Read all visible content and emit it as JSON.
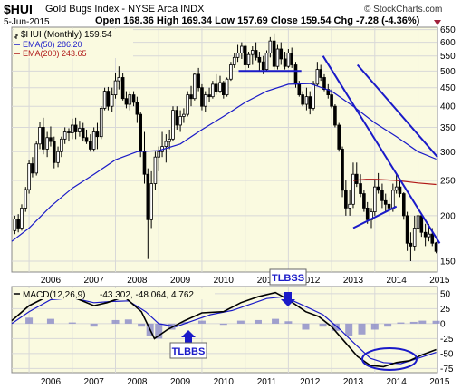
{
  "header": {
    "symbol": "$HUI",
    "name": "Gold Bugs Index - NYSE Arca INDX",
    "watermark": "© StockCharts.com",
    "date": "5-Jun-2015",
    "quote": "Open 168.36 High 169.34 Low 157.69 Close 159.54 Chg -7.28 (-4.36%)"
  },
  "colors": {
    "panel_bg": "#fafae0",
    "grid": "#d8d8d8",
    "candle": "#000000",
    "ema50": "#1a1ac8",
    "ema200": "#b01818",
    "trendline": "#1a1ac8",
    "annotation": "#1a1ac8",
    "hist": "#8a8ac8"
  },
  "legend": {
    "price": "$HUI (Monthly) 159.54",
    "ema50": "EMA(50) 286.20",
    "ema200": "EMA(200) 243.65"
  },
  "macd": {
    "label": "MACD(12,26,9)",
    "values": "-43.302, -48.064, 4.762"
  },
  "annotations": {
    "tlbss_top": "TLBSS",
    "tlbss_bottom": "TLBBS"
  },
  "chart_data": [
    {
      "type": "candlestick",
      "title": "$HUI (Monthly)",
      "x_tick_labels": [
        "2006",
        "2007",
        "2008",
        "2009",
        "2010",
        "2011",
        "2012",
        "2013",
        "2014",
        "2015"
      ],
      "y_tick_labels": [
        "650",
        "600",
        "550",
        "500",
        "450",
        "400",
        "350",
        "300",
        "250",
        "200",
        "150"
      ],
      "y_scale": "log",
      "ylim": [
        140,
        660
      ],
      "grid": true,
      "legend_position": "top-left",
      "x_start": 2005.6,
      "x_end": 2015.45,
      "candles": [
        [
          2005.58,
          175,
          185,
          170,
          182
        ],
        [
          2005.67,
          182,
          200,
          178,
          196
        ],
        [
          2005.75,
          196,
          202,
          180,
          185
        ],
        [
          2005.83,
          185,
          215,
          182,
          210
        ],
        [
          2005.92,
          210,
          240,
          205,
          236
        ],
        [
          2006.0,
          236,
          285,
          230,
          278
        ],
        [
          2006.08,
          278,
          290,
          255,
          262
        ],
        [
          2006.17,
          262,
          320,
          258,
          315
        ],
        [
          2006.25,
          315,
          362,
          305,
          350
        ],
        [
          2006.33,
          350,
          372,
          295,
          305
        ],
        [
          2006.42,
          305,
          340,
          290,
          328
        ],
        [
          2006.5,
          328,
          352,
          310,
          320
        ],
        [
          2006.58,
          320,
          330,
          270,
          280
        ],
        [
          2006.67,
          280,
          310,
          272,
          300
        ],
        [
          2006.75,
          300,
          330,
          290,
          325
        ],
        [
          2006.83,
          325,
          350,
          315,
          340
        ],
        [
          2006.92,
          340,
          348,
          320,
          338
        ],
        [
          2007.0,
          338,
          370,
          325,
          355
        ],
        [
          2007.08,
          355,
          372,
          325,
          340
        ],
        [
          2007.17,
          340,
          365,
          330,
          348
        ],
        [
          2007.25,
          348,
          360,
          320,
          328
        ],
        [
          2007.33,
          328,
          345,
          315,
          320
        ],
        [
          2007.42,
          320,
          335,
          300,
          305
        ],
        [
          2007.5,
          305,
          350,
          300,
          340
        ],
        [
          2007.58,
          340,
          360,
          305,
          330
        ],
        [
          2007.67,
          330,
          400,
          325,
          395
        ],
        [
          2007.75,
          395,
          450,
          390,
          440
        ],
        [
          2007.83,
          440,
          452,
          390,
          400
        ],
        [
          2007.92,
          400,
          450,
          385,
          430
        ],
        [
          2008.0,
          430,
          495,
          420,
          470
        ],
        [
          2008.08,
          470,
          515,
          445,
          480
        ],
        [
          2008.17,
          480,
          495,
          415,
          420
        ],
        [
          2008.25,
          420,
          440,
          395,
          405
        ],
        [
          2008.33,
          405,
          440,
          390,
          430
        ],
        [
          2008.42,
          430,
          440,
          400,
          410
        ],
        [
          2008.5,
          410,
          425,
          360,
          380
        ],
        [
          2008.58,
          380,
          385,
          290,
          300
        ],
        [
          2008.67,
          300,
          340,
          245,
          260
        ],
        [
          2008.75,
          260,
          270,
          152,
          195
        ],
        [
          2008.83,
          195,
          265,
          185,
          245
        ],
        [
          2008.92,
          245,
          300,
          235,
          290
        ],
        [
          2009.0,
          290,
          310,
          265,
          300
        ],
        [
          2009.08,
          300,
          340,
          290,
          310
        ],
        [
          2009.17,
          310,
          335,
          280,
          320
        ],
        [
          2009.25,
          320,
          345,
          305,
          325
        ],
        [
          2009.33,
          325,
          400,
          320,
          390
        ],
        [
          2009.42,
          390,
          400,
          345,
          355
        ],
        [
          2009.5,
          355,
          390,
          340,
          375
        ],
        [
          2009.58,
          375,
          395,
          360,
          380
        ],
        [
          2009.67,
          380,
          440,
          375,
          430
        ],
        [
          2009.75,
          430,
          455,
          400,
          420
        ],
        [
          2009.83,
          420,
          495,
          415,
          490
        ],
        [
          2009.92,
          490,
          510,
          440,
          450
        ],
        [
          2010.0,
          450,
          460,
          390,
          400
        ],
        [
          2010.08,
          400,
          440,
          385,
          430
        ],
        [
          2010.17,
          430,
          450,
          410,
          425
        ],
        [
          2010.25,
          425,
          470,
          420,
          460
        ],
        [
          2010.33,
          460,
          490,
          430,
          440
        ],
        [
          2010.42,
          440,
          485,
          435,
          465
        ],
        [
          2010.5,
          465,
          470,
          420,
          430
        ],
        [
          2010.58,
          430,
          480,
          425,
          475
        ],
        [
          2010.67,
          475,
          530,
          470,
          520
        ],
        [
          2010.75,
          520,
          560,
          510,
          545
        ],
        [
          2010.83,
          545,
          590,
          530,
          560
        ],
        [
          2010.92,
          560,
          600,
          540,
          585
        ],
        [
          2011.0,
          585,
          590,
          500,
          520
        ],
        [
          2011.08,
          520,
          565,
          510,
          555
        ],
        [
          2011.17,
          555,
          585,
          520,
          570
        ],
        [
          2011.25,
          570,
          600,
          535,
          545
        ],
        [
          2011.33,
          545,
          565,
          500,
          530
        ],
        [
          2011.42,
          530,
          550,
          490,
          505
        ],
        [
          2011.5,
          505,
          570,
          500,
          560
        ],
        [
          2011.58,
          560,
          620,
          545,
          605
        ],
        [
          2011.67,
          605,
          635,
          505,
          515
        ],
        [
          2011.75,
          515,
          590,
          505,
          575
        ],
        [
          2011.83,
          575,
          600,
          520,
          540
        ],
        [
          2011.92,
          540,
          565,
          505,
          515
        ],
        [
          2012.0,
          515,
          575,
          510,
          560
        ],
        [
          2012.08,
          560,
          580,
          510,
          520
        ],
        [
          2012.17,
          520,
          530,
          450,
          460
        ],
        [
          2012.25,
          460,
          470,
          425,
          430
        ],
        [
          2012.33,
          430,
          440,
          400,
          405
        ],
        [
          2012.42,
          405,
          450,
          390,
          425
        ],
        [
          2012.5,
          425,
          440,
          380,
          395
        ],
        [
          2012.58,
          395,
          470,
          390,
          460
        ],
        [
          2012.67,
          460,
          530,
          455,
          505
        ],
        [
          2012.75,
          505,
          520,
          470,
          480
        ],
        [
          2012.83,
          480,
          490,
          440,
          445
        ],
        [
          2012.92,
          445,
          460,
          420,
          430
        ],
        [
          2013.0,
          430,
          445,
          395,
          400
        ],
        [
          2013.08,
          400,
          405,
          350,
          355
        ],
        [
          2013.17,
          355,
          360,
          300,
          305
        ],
        [
          2013.25,
          305,
          310,
          225,
          235
        ],
        [
          2013.33,
          235,
          250,
          200,
          210
        ],
        [
          2013.42,
          210,
          235,
          200,
          215
        ],
        [
          2013.5,
          215,
          280,
          210,
          260
        ],
        [
          2013.58,
          260,
          280,
          240,
          245
        ],
        [
          2013.67,
          245,
          260,
          225,
          230
        ],
        [
          2013.75,
          230,
          235,
          205,
          210
        ],
        [
          2013.83,
          210,
          218,
          190,
          195
        ],
        [
          2013.92,
          195,
          210,
          185,
          205
        ],
        [
          2014.0,
          205,
          250,
          200,
          240
        ],
        [
          2014.08,
          240,
          262,
          230,
          235
        ],
        [
          2014.17,
          235,
          245,
          210,
          220
        ],
        [
          2014.25,
          220,
          230,
          205,
          215
        ],
        [
          2014.33,
          215,
          225,
          200,
          210
        ],
        [
          2014.42,
          210,
          245,
          205,
          235
        ],
        [
          2014.5,
          235,
          260,
          230,
          240
        ],
        [
          2014.58,
          240,
          250,
          225,
          230
        ],
        [
          2014.67,
          230,
          232,
          195,
          200
        ],
        [
          2014.75,
          200,
          205,
          160,
          168
        ],
        [
          2014.83,
          168,
          180,
          150,
          165
        ],
        [
          2014.92,
          165,
          200,
          160,
          185
        ],
        [
          2015.0,
          185,
          210,
          180,
          200
        ],
        [
          2015.08,
          200,
          202,
          175,
          180
        ],
        [
          2015.17,
          180,
          190,
          165,
          175
        ],
        [
          2015.25,
          175,
          190,
          170,
          178
        ],
        [
          2015.33,
          178,
          185,
          165,
          168
        ],
        [
          2015.42,
          168.36,
          169.34,
          157.69,
          159.54
        ]
      ],
      "ema50": [
        [
          2005.6,
          170
        ],
        [
          2006.0,
          185
        ],
        [
          2006.5,
          212
        ],
        [
          2007.0,
          238
        ],
        [
          2007.5,
          260
        ],
        [
          2008.0,
          285
        ],
        [
          2008.5,
          300
        ],
        [
          2009.0,
          302
        ],
        [
          2009.5,
          315
        ],
        [
          2010.0,
          345
        ],
        [
          2010.5,
          375
        ],
        [
          2011.0,
          410
        ],
        [
          2011.5,
          440
        ],
        [
          2012.0,
          460
        ],
        [
          2012.5,
          462
        ],
        [
          2013.0,
          440
        ],
        [
          2013.5,
          400
        ],
        [
          2014.0,
          360
        ],
        [
          2014.5,
          330
        ],
        [
          2015.0,
          300
        ],
        [
          2015.42,
          286.2
        ]
      ],
      "ema200": [
        [
          2013.5,
          250
        ],
        [
          2013.8,
          252
        ],
        [
          2014.0,
          252
        ],
        [
          2014.5,
          250
        ],
        [
          2015.0,
          246
        ],
        [
          2015.42,
          243.65
        ]
      ],
      "trendlines": [
        [
          [
            2010.85,
            500
          ],
          [
            2012.3,
            500
          ]
        ],
        [
          [
            2012.8,
            550
          ],
          [
            2015.5,
            168
          ]
        ],
        [
          [
            2013.6,
            520
          ],
          [
            2015.45,
            290
          ]
        ],
        [
          [
            2013.5,
            185
          ],
          [
            2014.5,
            212
          ]
        ]
      ]
    },
    {
      "type": "line",
      "title": "MACD(12,26,9)",
      "y_tick_labels": [
        "50",
        "25",
        "0",
        "-25",
        "-50",
        "-75"
      ],
      "ylim": [
        -82,
        62
      ],
      "grid": true,
      "macd": [
        [
          2005.6,
          5
        ],
        [
          2006.0,
          30
        ],
        [
          2006.5,
          48
        ],
        [
          2007.0,
          45
        ],
        [
          2007.5,
          30
        ],
        [
          2007.8,
          35
        ],
        [
          2008.2,
          45
        ],
        [
          2008.6,
          20
        ],
        [
          2008.9,
          -25
        ],
        [
          2009.2,
          -10
        ],
        [
          2009.6,
          5
        ],
        [
          2010.0,
          18
        ],
        [
          2010.5,
          20
        ],
        [
          2010.9,
          35
        ],
        [
          2011.3,
          45
        ],
        [
          2011.7,
          52
        ],
        [
          2012.0,
          40
        ],
        [
          2012.4,
          20
        ],
        [
          2012.7,
          12
        ],
        [
          2013.0,
          -5
        ],
        [
          2013.3,
          -30
        ],
        [
          2013.6,
          -55
        ],
        [
          2013.9,
          -70
        ],
        [
          2014.2,
          -72
        ],
        [
          2014.5,
          -65
        ],
        [
          2014.8,
          -62
        ],
        [
          2015.1,
          -52
        ],
        [
          2015.42,
          -43.3
        ]
      ],
      "signal": [
        [
          2005.6,
          0
        ],
        [
          2006.0,
          20
        ],
        [
          2006.5,
          40
        ],
        [
          2007.0,
          43
        ],
        [
          2007.5,
          35
        ],
        [
          2007.9,
          37
        ],
        [
          2008.3,
          38
        ],
        [
          2008.7,
          20
        ],
        [
          2009.0,
          0
        ],
        [
          2009.4,
          -5
        ],
        [
          2009.8,
          5
        ],
        [
          2010.2,
          15
        ],
        [
          2010.7,
          22
        ],
        [
          2011.1,
          32
        ],
        [
          2011.5,
          42
        ],
        [
          2011.9,
          45
        ],
        [
          2012.3,
          32
        ],
        [
          2012.8,
          15
        ],
        [
          2013.2,
          -10
        ],
        [
          2013.6,
          -38
        ],
        [
          2013.9,
          -58
        ],
        [
          2014.2,
          -65
        ],
        [
          2014.6,
          -67
        ],
        [
          2015.0,
          -58
        ],
        [
          2015.42,
          -48.06
        ]
      ],
      "histogram": [
        [
          2006.0,
          10
        ],
        [
          2006.5,
          8
        ],
        [
          2007.0,
          2
        ],
        [
          2007.5,
          -5
        ],
        [
          2008.0,
          6
        ],
        [
          2008.3,
          7
        ],
        [
          2008.6,
          -5
        ],
        [
          2008.8,
          -20
        ],
        [
          2009.0,
          -25
        ],
        [
          2009.3,
          -10
        ],
        [
          2009.6,
          3
        ],
        [
          2010.0,
          5
        ],
        [
          2010.5,
          -2
        ],
        [
          2010.9,
          5
        ],
        [
          2011.3,
          6
        ],
        [
          2011.7,
          8
        ],
        [
          2012.0,
          4
        ],
        [
          2012.4,
          -10
        ],
        [
          2012.8,
          -5
        ],
        [
          2013.1,
          -12
        ],
        [
          2013.4,
          -20
        ],
        [
          2013.7,
          -18
        ],
        [
          2014.0,
          -10
        ],
        [
          2014.3,
          -5
        ],
        [
          2014.6,
          2
        ],
        [
          2014.9,
          3
        ],
        [
          2015.1,
          5
        ],
        [
          2015.42,
          4.76
        ]
      ]
    }
  ]
}
